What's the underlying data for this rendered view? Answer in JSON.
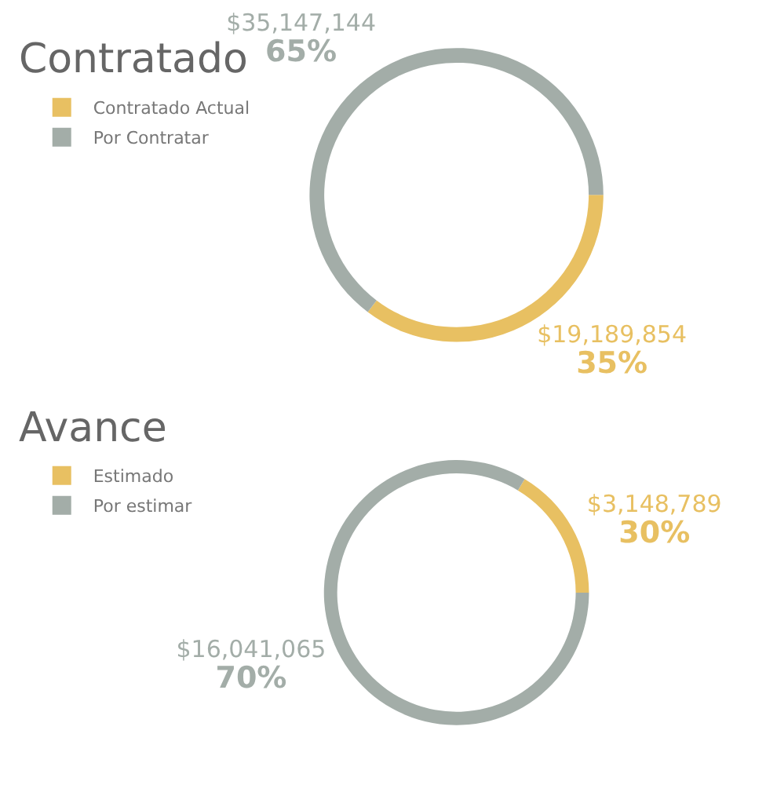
{
  "chart_data": [
    {
      "type": "donut",
      "title": "Contratado",
      "categories": [
        "Contratado Actual",
        "Por Contratar"
      ],
      "values": [
        19189854,
        35147144
      ],
      "colors": [
        "#e8c062",
        "#a3ada8"
      ],
      "value_labels": [
        "$19,189,854\n35%",
        "$35,147,144\n65%"
      ],
      "legend": "top left"
    },
    {
      "type": "donut",
      "title": "Avance",
      "categories": [
        "Estimado",
        "Por estimar"
      ],
      "values": [
        3148789,
        16041065
      ],
      "colors": [
        "#e8c062",
        "#a3ada8"
      ],
      "value_labels": [
        "$3,148,789\n30%",
        "$16,041,065\n70%"
      ],
      "legend": "top left"
    }
  ]
}
